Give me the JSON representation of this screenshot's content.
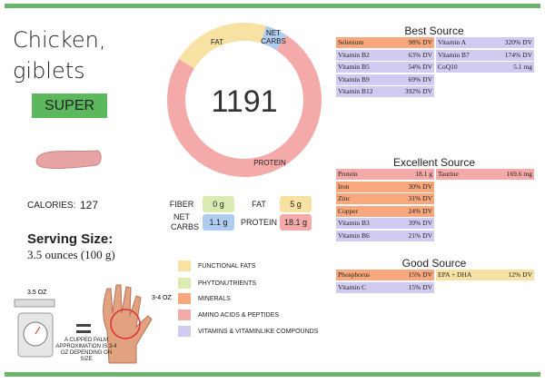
{
  "header": {
    "title": "Chicken, giblets",
    "badge": "SUPER",
    "calories_label": "CALORIES:",
    "calories": "127",
    "serving_label": "Serving Size:",
    "serving": "3.5 ounces (100 g)"
  },
  "donut": {
    "center": "1191"
  },
  "macros": [
    {
      "name": "FIBER",
      "value": 0,
      "label": "0 g",
      "color": "#d9ebb2"
    },
    {
      "name": "FAT",
      "value": 5,
      "label": "5 g",
      "color": "#f8e2a3"
    },
    {
      "name": "NET CARBS",
      "value": 1.1,
      "label": "1.1 g",
      "color": "#aecbf0"
    },
    {
      "name": "PROTEIN",
      "value": 18.1,
      "label": "18.1 g",
      "color": "#f4aaa9"
    }
  ],
  "legend": [
    {
      "name": "FUNCTIONAL FATS",
      "color": "#f8e2a3"
    },
    {
      "name": "PHYTONUTRIENTS",
      "color": "#dcebb3"
    },
    {
      "name": "MINERALS",
      "color": "#f8a87c"
    },
    {
      "name": "AMINO ACIDS & PEPTIDES",
      "color": "#f4aaa9"
    },
    {
      "name": "VITAMINS & VITAMINLIKE COMPOUNDS",
      "color": "#d2cbf1"
    }
  ],
  "illustration": {
    "weight": "3.5 OZ",
    "hand": "3-4 OZ",
    "note": "A CUPPED PALM APPROXIMATION IS 3-4 OZ DEPENDING ON SIZE"
  },
  "sources": [
    {
      "title": "Best Source",
      "rows": [
        [
          {
            "name": "Selenium",
            "amount": "98% DV",
            "color": "#f8a87c"
          },
          {
            "name": "Vitamin A",
            "amount": "320% DV",
            "color": "#d2cbf1"
          }
        ],
        [
          {
            "name": "Vitamin B2",
            "amount": "63% DV",
            "color": "#d2cbf1"
          },
          {
            "name": "Vitamin B7",
            "amount": "174% DV",
            "color": "#d2cbf1"
          }
        ],
        [
          {
            "name": "Vitamin B5",
            "amount": "54% DV",
            "color": "#d2cbf1"
          },
          {
            "name": "CoQ10",
            "amount": "5.1 mg",
            "color": "#d2cbf1"
          }
        ],
        [
          {
            "name": "Vitamin B9",
            "amount": "69% DV",
            "color": "#d2cbf1"
          }
        ],
        [
          {
            "name": "Vitamin B12",
            "amount": "392% DV",
            "color": "#d2cbf1"
          }
        ]
      ]
    },
    {
      "title": "Excellent Source",
      "rows": [
        [
          {
            "name": "Protein",
            "amount": "18.1 g",
            "color": "#f4aaa9"
          },
          {
            "name": "Taurine",
            "amount": "169.6 mg",
            "color": "#f4aaa9"
          }
        ],
        [
          {
            "name": "Iron",
            "amount": "30% DV",
            "color": "#f8a87c"
          }
        ],
        [
          {
            "name": "Zinc",
            "amount": "31% DV",
            "color": "#f8a87c"
          }
        ],
        [
          {
            "name": "Copper",
            "amount": "24% DV",
            "color": "#f8a87c"
          }
        ],
        [
          {
            "name": "Vitamin B3",
            "amount": "39% DV",
            "color": "#d2cbf1"
          }
        ],
        [
          {
            "name": "Vitamin B6",
            "amount": "21% DV",
            "color": "#d2cbf1"
          }
        ]
      ]
    },
    {
      "title": "Good Source",
      "rows": [
        [
          {
            "name": "Phosphorus",
            "amount": "15% DV",
            "color": "#f8a87c"
          },
          {
            "name": "EPA + DHA",
            "amount": "12% DV",
            "color": "#f8e2a3"
          }
        ],
        [
          {
            "name": "Vitamin C",
            "amount": "15% DV",
            "color": "#d2cbf1"
          }
        ]
      ]
    }
  ]
}
